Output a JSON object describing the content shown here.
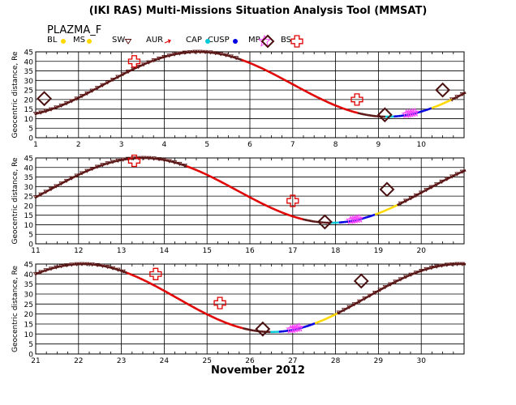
{
  "chart_data": {
    "title": "(IKI RAS) Multi-Missions Situation Analysis Tool (MMSAT)",
    "spacecraft": "PLAZMA_F",
    "type": "line",
    "xlabel": "November 2012",
    "ylabel": "Geocentric distance, Re",
    "ylim": [
      0,
      45
    ],
    "yticks": [
      0,
      5,
      10,
      15,
      20,
      25,
      30,
      35,
      40,
      45
    ],
    "grid": true,
    "legend_position": "top",
    "legend": [
      {
        "name": "BL",
        "marker": "dot",
        "color": "#ffd800"
      },
      {
        "name": "MS",
        "marker": "dot",
        "color": "#ffd800"
      },
      {
        "name": "SW",
        "marker": "triangle-down",
        "color": "#5a1414"
      },
      {
        "name": "AUR",
        "marker": "arrow",
        "color": "#e00000"
      },
      {
        "name": "CAP",
        "marker": "dot",
        "color": "#00c8d8"
      },
      {
        "name": "CUSP",
        "marker": "dot",
        "color": "#0000e0"
      },
      {
        "name": "MP",
        "marker": "star",
        "color": "#ff44ff"
      },
      {
        "name": "BS",
        "marker": "cross",
        "color": "#e00000"
      }
    ],
    "panels": [
      {
        "xlim": [
          1,
          11
        ],
        "xticks": [
          1,
          2,
          3,
          4,
          5,
          6,
          7,
          8,
          9,
          10
        ],
        "apogee_day": 4.7,
        "perigee_day": 9.2,
        "apogee_re": 45,
        "perigee_re": 11,
        "diamonds": [
          {
            "day": 1.2,
            "re": 20.5
          },
          {
            "day": 9.15,
            "re": 12
          },
          {
            "day": 10.5,
            "re": 25
          }
        ],
        "bs_crossings": [
          {
            "day": 3.3,
            "re": 40
          },
          {
            "day": 8.5,
            "re": 20
          }
        ]
      },
      {
        "xlim": [
          11,
          21
        ],
        "xticks": [
          11,
          12,
          13,
          14,
          15,
          16,
          17,
          18,
          19,
          20
        ],
        "apogee_day": 13.5,
        "perigee_day": 17.9,
        "apogee_re": 45,
        "perigee_re": 11,
        "diamonds": [
          {
            "day": 17.75,
            "re": 11.5
          },
          {
            "day": 19.2,
            "re": 28.5
          }
        ],
        "bs_crossings": [
          {
            "day": 13.3,
            "re": 43.5
          },
          {
            "day": 17.0,
            "re": 22.5
          }
        ]
      },
      {
        "xlim": [
          21,
          31
        ],
        "xticks": [
          21,
          22,
          23,
          24,
          25,
          26,
          27,
          28,
          29,
          30
        ],
        "apogee_day": 22.0,
        "perigee_day": 26.5,
        "apogee_re": 45,
        "perigee_re": 11,
        "apogee2_day": 31.3,
        "diamonds": [
          {
            "day": 26.3,
            "re": 12.5
          },
          {
            "day": 28.6,
            "re": 36.5
          }
        ],
        "bs_crossings": [
          {
            "day": 23.8,
            "re": 40
          },
          {
            "day": 25.3,
            "re": 25.5
          }
        ]
      }
    ]
  }
}
